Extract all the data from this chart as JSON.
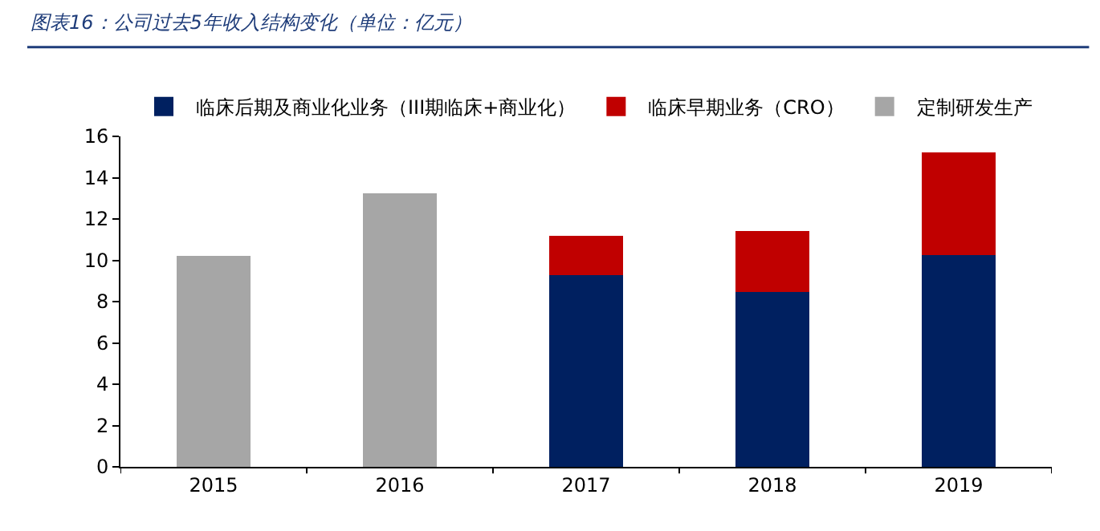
{
  "chart_data": {
    "type": "bar",
    "stacked": true,
    "title": "图表16：公司过去5年收入结构变化（单位：亿元）",
    "categories": [
      "2015",
      "2016",
      "2017",
      "2018",
      "2019"
    ],
    "series": [
      {
        "name": "临床后期及商业化业务（III期临床+商业化）",
        "color": "#002060",
        "values": [
          null,
          null,
          9.27,
          8.46,
          10.24
        ]
      },
      {
        "name": "临床早期业务（CRO）",
        "color": "#c00000",
        "values": [
          null,
          null,
          1.92,
          2.97,
          4.97
        ]
      },
      {
        "name": "定制研发生产",
        "color": "#a6a6a6",
        "values": [
          10.2,
          13.25,
          null,
          null,
          null
        ]
      }
    ],
    "ylim": [
      0,
      16
    ],
    "yticks": [
      0,
      2,
      4,
      6,
      8,
      10,
      12,
      14,
      16
    ],
    "legend": "top"
  }
}
